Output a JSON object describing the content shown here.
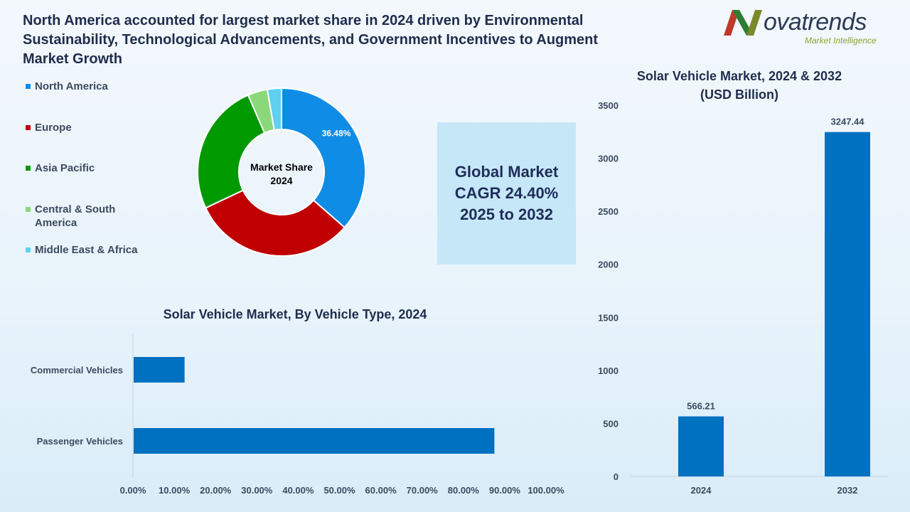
{
  "headline": "North America accounted for largest market share in 2024 driven by Environmental Sustainability, Technological Advancements, and Government Incentives to Augment Market Growth",
  "logo": {
    "name": "ovatrends",
    "tagline": "Market Intelligence",
    "icon": "novatrends-n-logo"
  },
  "cagr": {
    "line1": "Global Market",
    "line2": "CAGR 24.40%",
    "line3": "2025 to 2032"
  },
  "colors": {
    "north_america": "#0f8ce6",
    "europe": "#c00000",
    "asia_pacific": "#009a00",
    "central_south_america": "#8ad87a",
    "middle_east_africa": "#5fd0f2",
    "bar": "#0070c0"
  },
  "chart_data": [
    {
      "type": "pie",
      "center_label": [
        "Market Share",
        "2024"
      ],
      "categories": [
        "North America",
        "Europe",
        "Asia Pacific",
        "Central & South America",
        "Middle East & Africa"
      ],
      "values": [
        36.48,
        31.5,
        25.5,
        3.8,
        2.72
      ],
      "data_labels": [
        "36.48%",
        "",
        "",
        "",
        ""
      ]
    },
    {
      "type": "bar",
      "orientation": "horizontal",
      "title": "Solar Vehicle Market, By Vehicle Type, 2024",
      "categories": [
        "Commercial Vehicles",
        "Passenger Vehicles"
      ],
      "values": [
        12.5,
        87.5
      ],
      "xlim": [
        0,
        100
      ],
      "x_ticks": [
        "0.00%",
        "10.00%",
        "20.00%",
        "30.00%",
        "40.00%",
        "50.00%",
        "60.00%",
        "70.00%",
        "80.00%",
        "90.00%",
        "100.00%"
      ]
    },
    {
      "type": "bar",
      "title": "Solar Vehicle Market, 2024 & 2032",
      "subtitle": "(USD Billion)",
      "categories": [
        "2024",
        "2032"
      ],
      "values": [
        566.21,
        3247.44
      ],
      "data_labels": [
        "566.21",
        "3247.44"
      ],
      "ylim": [
        0,
        3500
      ],
      "y_ticks": [
        "0",
        "500",
        "1000",
        "1500",
        "2000",
        "2500",
        "3000",
        "3500"
      ]
    }
  ]
}
